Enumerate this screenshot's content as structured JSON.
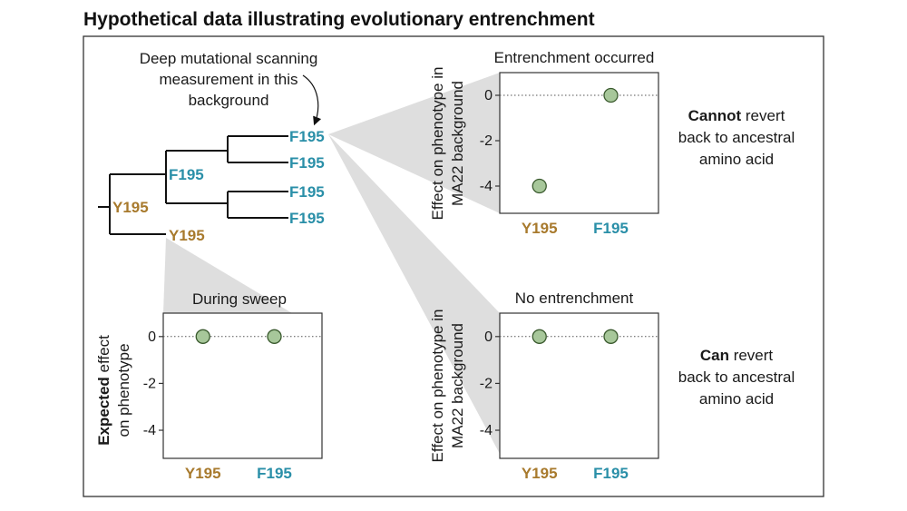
{
  "title": "Hypothetical data illustrating evolutionary entrenchment",
  "colors": {
    "ancestral": "#a87a2d",
    "derived": "#2a8fa8",
    "point_fill": "#a7c79a",
    "point_stroke": "#3a5a2e",
    "wedge": "#dcdcdc"
  },
  "annotation": {
    "lines": [
      "Deep mutational scanning",
      "measurement in this",
      "background"
    ]
  },
  "tree": {
    "root_label": "Y195",
    "ancestor_label": "Y195",
    "internal_label": "F195",
    "tips": [
      "F195",
      "F195",
      "F195",
      "F195"
    ]
  },
  "panels": {
    "entrenched": {
      "heading": "Entrenchment occurred",
      "ylabel_lines": [
        "Effect on phenotype in",
        "MA22 background"
      ],
      "note": {
        "bold": "Cannot",
        "rest": " revert",
        "line2": "back to ancestral",
        "line3": "amino acid"
      }
    },
    "sweep": {
      "heading": "During sweep",
      "ylabel_bold": "Expected",
      "ylabel_rest": " effect",
      "ylabel_line2": "on phenotype"
    },
    "not_entrenched": {
      "heading": "No entrenchment",
      "ylabel_lines": [
        "Effect on phenotype in",
        "MA22 background"
      ],
      "note": {
        "bold": "Can",
        "rest": " revert",
        "line2": "back to ancestral",
        "line3": "amino acid"
      }
    }
  },
  "chart_data": [
    {
      "type": "scatter",
      "title": "Entrenchment occurred",
      "categories": [
        "Y195",
        "F195"
      ],
      "values": [
        -4,
        0
      ],
      "ylabel": "Effect on phenotype in MA22 background",
      "yticks": [
        0,
        -2,
        -4
      ],
      "ylim": [
        -5.2,
        1.0
      ],
      "reference_line": 0
    },
    {
      "type": "scatter",
      "title": "During sweep",
      "categories": [
        "Y195",
        "F195"
      ],
      "values": [
        0,
        0
      ],
      "ylabel": "Expected effect on phenotype",
      "yticks": [
        0,
        -2,
        -4
      ],
      "ylim": [
        -5.2,
        1.0
      ],
      "reference_line": 0
    },
    {
      "type": "scatter",
      "title": "No entrenchment",
      "categories": [
        "Y195",
        "F195"
      ],
      "values": [
        0,
        0
      ],
      "ylabel": "Effect on phenotype in MA22 background",
      "yticks": [
        0,
        -2,
        -4
      ],
      "ylim": [
        -5.2,
        1.0
      ],
      "reference_line": 0
    }
  ]
}
